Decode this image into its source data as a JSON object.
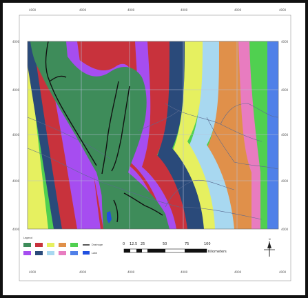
{
  "map": {
    "zone_colors": [
      "#3e8c5a",
      "#a64df0",
      "#c8323c",
      "#2a4a7a",
      "#e6f060",
      "#a8d8f0",
      "#e0904a",
      "#e87cc0",
      "#50d050",
      "#5080e8"
    ],
    "river_color": "#111111",
    "frame_color": "#111111",
    "grid_color": "#b8c0d8"
  },
  "x_ticks": [
    "4000",
    "4000",
    "4000",
    "4000",
    "4000",
    "4000"
  ],
  "y_ticks": [
    "4000",
    "4000",
    "4000",
    "4000",
    "4000"
  ],
  "legend": {
    "title": "Legend",
    "items": [
      {
        "color": "#3e8c5a"
      },
      {
        "color": "#c8323c"
      },
      {
        "color": "#e6f060"
      },
      {
        "color": "#e0904a"
      },
      {
        "color": "#50d050"
      },
      {
        "color": "#a64df0"
      },
      {
        "color": "#2a4a7a"
      },
      {
        "color": "#a8d8f0"
      },
      {
        "color": "#e87cc0"
      },
      {
        "color": "#5080e8"
      }
    ],
    "line_label": "Drainage",
    "water_label": "Lake",
    "water_color": "#2050e0"
  },
  "scale_bar": {
    "labels": [
      "0",
      "12.5",
      "25",
      "50",
      "75",
      "100"
    ],
    "unit": "Kilometers"
  },
  "north_arrow": {
    "label": "N"
  }
}
